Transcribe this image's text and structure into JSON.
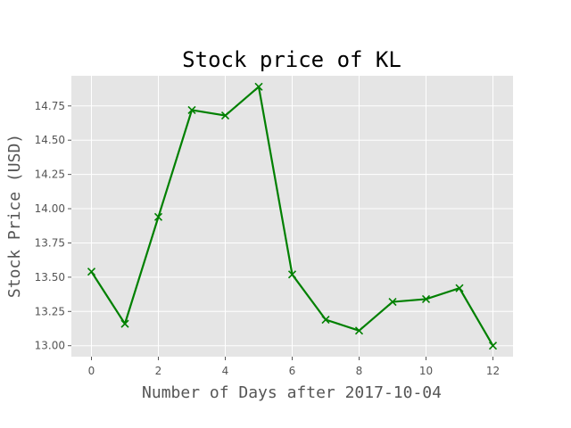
{
  "chart_data": {
    "type": "line",
    "title": "Stock price of KL",
    "xlabel": "Number of Days after 2017-10-04",
    "ylabel": "Stock Price (USD)",
    "x": [
      0,
      1,
      2,
      3,
      4,
      5,
      6,
      7,
      8,
      9,
      10,
      11,
      12
    ],
    "series": [
      {
        "values": [
          13.54,
          13.16,
          13.94,
          14.72,
          14.68,
          14.89,
          13.52,
          13.19,
          13.11,
          13.32,
          13.34,
          13.42,
          13.0
        ],
        "color": "#008000",
        "marker": "x"
      }
    ],
    "xlim": [
      -0.6,
      12.6
    ],
    "ylim": [
      12.92,
      14.97
    ],
    "xticks": [
      0,
      2,
      4,
      6,
      8,
      10,
      12
    ],
    "xtick_labels": [
      "0",
      "2",
      "4",
      "6",
      "8",
      "10",
      "12"
    ],
    "yticks": [
      13.0,
      13.25,
      13.5,
      13.75,
      14.0,
      14.25,
      14.5,
      14.75
    ],
    "ytick_labels": [
      "13.00",
      "13.25",
      "13.50",
      "13.75",
      "14.00",
      "14.25",
      "14.50",
      "14.75"
    ],
    "grid": true,
    "style": "ggplot",
    "background_color": "#e5e5e5",
    "grid_color": "#ffffff"
  }
}
